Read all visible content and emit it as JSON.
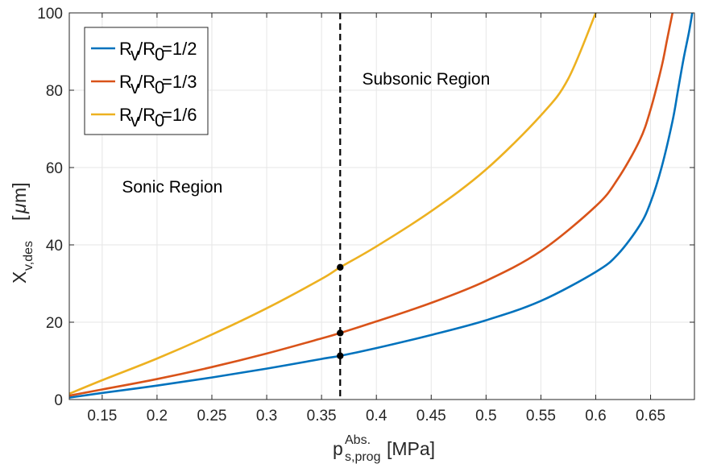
{
  "chart_data": {
    "type": "line",
    "xlim": [
      0.12,
      0.69
    ],
    "ylim": [
      0,
      100
    ],
    "xticks": [
      "0.15",
      "0.2",
      "0.25",
      "0.3",
      "0.35",
      "0.4",
      "0.45",
      "0.5",
      "0.55",
      "0.6",
      "0.65"
    ],
    "xtick_values": [
      0.15,
      0.2,
      0.25,
      0.3,
      0.35,
      0.4,
      0.45,
      0.5,
      0.55,
      0.6,
      0.65
    ],
    "yticks": [
      "0",
      "20",
      "40",
      "60",
      "80",
      "100"
    ],
    "ytick_values": [
      0,
      20,
      40,
      60,
      80,
      100
    ],
    "xlabel": {
      "main": "p",
      "sup": "Abs.",
      "sub": "s,prog",
      "unit": "[MPa]"
    },
    "ylabel": {
      "main": "X",
      "sub": "v,des",
      "unit_open": "[",
      "unit_mu": "μ",
      "unit_rest": "m]"
    },
    "grid": true,
    "legend_position": "top-left",
    "series": [
      {
        "name": "R_v/R_0=1/2",
        "legend": {
          "a": "R",
          "a_sub": "v",
          "mid": "/R",
          "b_sub": "0",
          "tail": "=1/2"
        },
        "color": "#0072BD",
        "x": [
          0.12,
          0.15,
          0.2,
          0.25,
          0.3,
          0.35,
          0.367,
          0.4,
          0.45,
          0.5,
          0.55,
          0.6,
          0.62,
          0.64,
          0.65,
          0.66,
          0.67,
          0.675,
          0.68,
          0.685,
          0.688
        ],
        "y": [
          0.5,
          1.7,
          3.6,
          5.7,
          8.0,
          10.5,
          11.3,
          13.3,
          16.7,
          20.5,
          25.5,
          33.0,
          37.5,
          45.0,
          51.0,
          60.0,
          72.0,
          80.0,
          88.0,
          95.0,
          100.0
        ]
      },
      {
        "name": "R_v/R_0=1/3",
        "legend": {
          "a": "R",
          "a_sub": "v",
          "mid": "/R",
          "b_sub": "0",
          "tail": "=1/3"
        },
        "color": "#D95319",
        "x": [
          0.12,
          0.15,
          0.2,
          0.25,
          0.3,
          0.35,
          0.367,
          0.4,
          0.45,
          0.5,
          0.55,
          0.6,
          0.62,
          0.64,
          0.65,
          0.66,
          0.665,
          0.67
        ],
        "y": [
          1.0,
          2.6,
          5.3,
          8.4,
          11.9,
          15.8,
          17.2,
          20.2,
          25.0,
          30.7,
          38.4,
          50.0,
          57.0,
          67.0,
          75.0,
          86.0,
          93.0,
          100.0
        ]
      },
      {
        "name": "R_v/R_0=1/6",
        "legend": {
          "a": "R",
          "a_sub": "v",
          "mid": "/R",
          "b_sub": "0",
          "tail": "=1/6"
        },
        "color": "#EDB120",
        "x": [
          0.12,
          0.15,
          0.2,
          0.25,
          0.3,
          0.35,
          0.367,
          0.4,
          0.45,
          0.5,
          0.55,
          0.575,
          0.6
        ],
        "y": [
          1.5,
          5.0,
          10.6,
          16.8,
          23.6,
          31.2,
          34.2,
          39.6,
          48.7,
          59.5,
          73.5,
          83.0,
          100.0
        ]
      }
    ],
    "vline": {
      "x": 0.367,
      "style": "dashed",
      "color": "#000000"
    },
    "markers": [
      {
        "x": 0.367,
        "y": 11.3
      },
      {
        "x": 0.367,
        "y": 17.2
      },
      {
        "x": 0.367,
        "y": 34.2
      }
    ],
    "annotations": [
      {
        "text": "Subsonic Region",
        "x": 0.387,
        "y": 81.5
      },
      {
        "text": "Sonic Region",
        "x": 0.168,
        "y": 53.5
      }
    ]
  }
}
